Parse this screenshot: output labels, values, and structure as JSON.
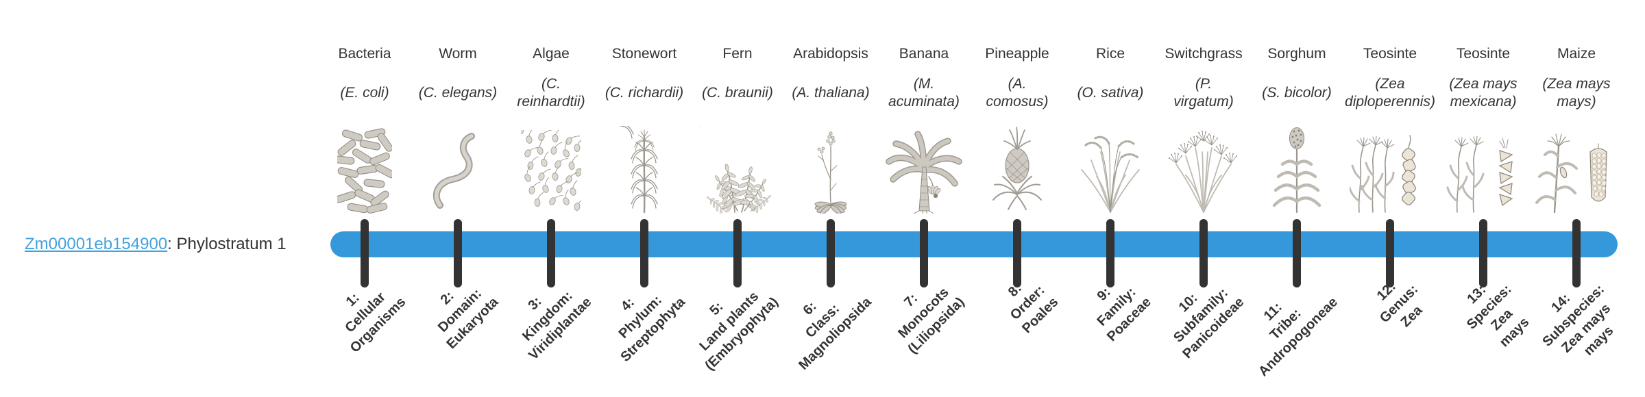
{
  "gene": {
    "id": "Zm00001eb154900",
    "label_suffix": ": Phylostratum 1"
  },
  "colors": {
    "bar_blue": "#3498db",
    "tick_dark": "#333333",
    "link_blue": "#42a2de",
    "text_dark": "#333333"
  },
  "timeline": {
    "stratum_count": 14,
    "phylostrata": [
      {
        "index": 1,
        "organism": "Bacteria",
        "species": "(E. coli)",
        "icon": "bacteria",
        "stratum_label": "1:\nCellular\nOrganisms"
      },
      {
        "index": 2,
        "organism": "Worm",
        "species": "(C. elegans)",
        "icon": "worm",
        "stratum_label": "2:\nDomain:\nEukaryota"
      },
      {
        "index": 3,
        "organism": "Algae",
        "species": "(C.\nreinhardtii)",
        "icon": "algae",
        "stratum_label": "3:\nKingdom:\nViridiplantae"
      },
      {
        "index": 4,
        "organism": "Stonewort",
        "species": "(C. richardii)",
        "icon": "stonewort",
        "stratum_label": "4:\nPhylum:\nStreptophyta"
      },
      {
        "index": 5,
        "organism": "Fern",
        "species": "(C. braunii)",
        "icon": "fern",
        "stratum_label": "5:\nLand plants\n(Embryophyta)"
      },
      {
        "index": 6,
        "organism": "Arabidopsis",
        "species": "(A. thaliana)",
        "icon": "arabidopsis",
        "stratum_label": "6:\nClass:\nMagnoliopsida"
      },
      {
        "index": 7,
        "organism": "Banana",
        "species": "(M.\nacuminata)",
        "icon": "banana",
        "stratum_label": "7:\nMonocots\n(Liliopsida)"
      },
      {
        "index": 8,
        "organism": "Pineapple",
        "species": "(A.\ncomosus)",
        "icon": "pineapple",
        "stratum_label": "8:\nOrder:\nPoales"
      },
      {
        "index": 9,
        "organism": "Rice",
        "species": "(O. sativa)",
        "icon": "rice",
        "stratum_label": "9:\nFamily:\nPoaceae"
      },
      {
        "index": 10,
        "organism": "Switchgrass",
        "species": "(P.\nvirgatum)",
        "icon": "switchgrass",
        "stratum_label": "10:\nSubfamily:\nPanicoideae"
      },
      {
        "index": 11,
        "organism": "Sorghum",
        "species": "(S. bicolor)",
        "icon": "sorghum",
        "stratum_label": "11:\nTribe:\nAndropogoneae"
      },
      {
        "index": 12,
        "organism": "Teosinte",
        "species": "(Zea\ndiploperennis)",
        "icon": "teosinte-diploperennis",
        "stratum_label": "12:\nGenus:\nZea"
      },
      {
        "index": 13,
        "organism": "Teosinte",
        "species": "(Zea mays\nmexicana)",
        "icon": "teosinte-mexicana",
        "stratum_label": "13:\nSpecies:\nZea\nmays"
      },
      {
        "index": 14,
        "organism": "Maize",
        "species": "(Zea mays\nmays)",
        "icon": "maize",
        "stratum_label": "14:\nSubspecies:\nZea mays\nmays"
      }
    ]
  }
}
